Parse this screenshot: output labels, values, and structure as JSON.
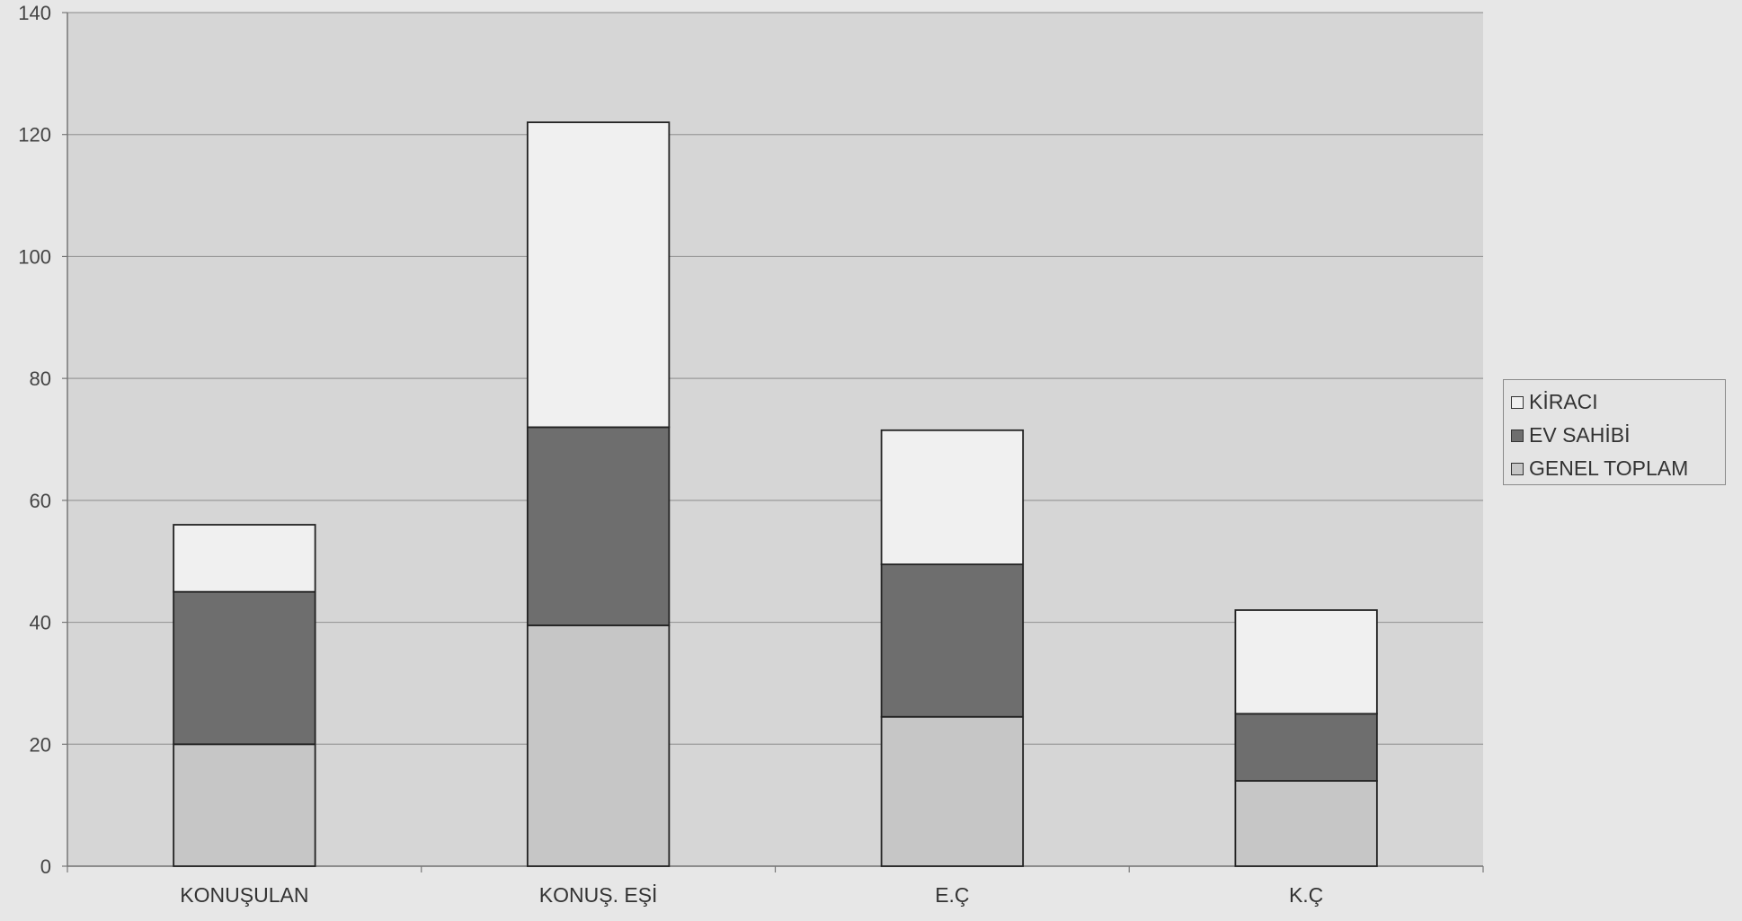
{
  "chart_data": {
    "type": "bar",
    "stacked": true,
    "categories": [
      "KONUŞULAN",
      "KONUŞ. EŞİ",
      "E.Ç",
      "K.Ç"
    ],
    "series": [
      {
        "name": "GENEL TOPLAM",
        "values": [
          20,
          39.5,
          24.5,
          14
        ],
        "color": "#c6c6c6"
      },
      {
        "name": "EV SAHİBİ",
        "values": [
          25,
          32.5,
          25,
          11
        ],
        "color": "#6e6e6e"
      },
      {
        "name": "KİRACI",
        "values": [
          11,
          50,
          22,
          17
        ],
        "color": "#f0f0f0"
      }
    ],
    "ylim": [
      0,
      140
    ],
    "yticks": [
      0,
      20,
      40,
      60,
      80,
      100,
      120,
      140
    ],
    "grid": true,
    "legend": "right",
    "legend_order": [
      "KİRACI",
      "EV SAHİBİ",
      "GENEL TOPLAM"
    ]
  }
}
